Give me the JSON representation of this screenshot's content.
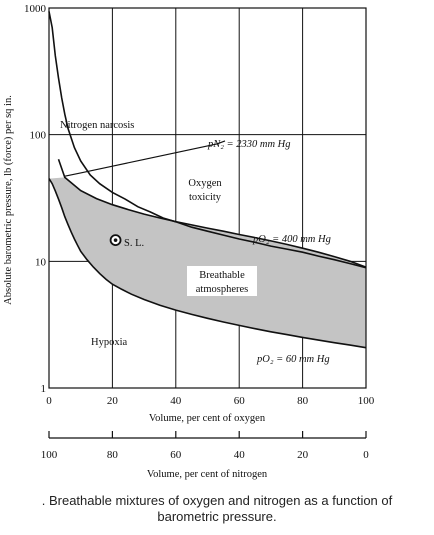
{
  "chart_data": {
    "type": "line",
    "x_axis": {
      "label": "Volume, per cent of oxygen",
      "range": [
        0,
        100
      ],
      "ticks": [
        "0",
        "20",
        "40",
        "60",
        "80",
        "100"
      ]
    },
    "x2_axis": {
      "label": "Volume, per cent of nitrogen",
      "range": [
        100,
        0
      ],
      "ticks": [
        "100",
        "80",
        "60",
        "40",
        "20",
        "0"
      ]
    },
    "y_axis": {
      "label": "Absolute barometric pressure, lb (force) per sq in.",
      "scale": "log",
      "range": [
        1,
        1000
      ],
      "ticks": [
        "1",
        "10",
        "100",
        "1000"
      ]
    },
    "grid": true,
    "series": [
      {
        "key": "narcosis",
        "x": [
          0,
          1,
          2,
          3,
          4,
          5,
          6,
          8,
          10,
          13,
          16,
          20,
          24,
          28,
          32,
          36,
          40,
          45,
          50,
          55,
          60,
          65,
          70,
          75,
          80,
          85,
          90,
          95,
          100
        ],
        "y": [
          940,
          700,
          420,
          280,
          195,
          145,
          112,
          79,
          62,
          48,
          41,
          35,
          31,
          27,
          24.5,
          22,
          20.5,
          18.6,
          17.3,
          16.1,
          15.0,
          14.1,
          13.2,
          12.5,
          11.8,
          11.0,
          10.3,
          9.6,
          8.9
        ]
      },
      {
        "key": "toxicity",
        "x": [
          3,
          5,
          10,
          15,
          20,
          25,
          30,
          35,
          40,
          45,
          50,
          55,
          60,
          65,
          70,
          75,
          80,
          85,
          90,
          95,
          100
        ],
        "y": [
          64,
          46,
          36.2,
          31.3,
          28.0,
          25.6,
          23.6,
          22.0,
          20.6,
          19.4,
          18.3,
          17.3,
          16.3,
          15.4,
          14.5,
          13.6,
          12.7,
          11.8,
          10.9,
          10.0,
          9.0
        ]
      },
      {
        "key": "hypoxia",
        "x": [
          0,
          1,
          2,
          3,
          4,
          5,
          6,
          7,
          8,
          9,
          10,
          12,
          14,
          16,
          18,
          20,
          23,
          26,
          30,
          35,
          40,
          45,
          50,
          55,
          60,
          65,
          70,
          75,
          80,
          85,
          90,
          95,
          100
        ],
        "y": [
          45,
          41,
          36,
          31,
          26.5,
          22.5,
          19.5,
          17.0,
          15.0,
          13.4,
          12.0,
          10.3,
          9.0,
          8.0,
          7.2,
          6.6,
          6.0,
          5.5,
          5.0,
          4.5,
          4.12,
          3.81,
          3.55,
          3.32,
          3.12,
          2.94,
          2.78,
          2.64,
          2.51,
          2.39,
          2.28,
          2.18,
          2.08
        ]
      },
      {
        "key": "pn2",
        "x": [
          5,
          10,
          20,
          30,
          40,
          50,
          53
        ],
        "y": [
          47,
          49.9,
          56.4,
          63.8,
          72.1,
          81.6,
          84.6
        ]
      }
    ],
    "annotations": {
      "narcosis": "Nitrogen narcosis",
      "pn2": "pN₂ = 2330 mm Hg",
      "toxicity_1": "Oxygen",
      "toxicity_2": "toxicity",
      "po2_400": "pO₂ = 400 mm Hg",
      "sl": "S. L.",
      "breathable_1": "Breathable",
      "breathable_2": "atmospheres",
      "hypoxia": "Hypoxia",
      "po2_60": "pO₂ = 60 mm Hg"
    },
    "sea_level_point": {
      "x": 21,
      "y": 14.7
    },
    "region_fill": "#c4c4c4"
  },
  "caption": {
    "line1": ". Breathable mixtures of oxygen and nitrogen as a function of",
    "line2": "barometric pressure."
  }
}
